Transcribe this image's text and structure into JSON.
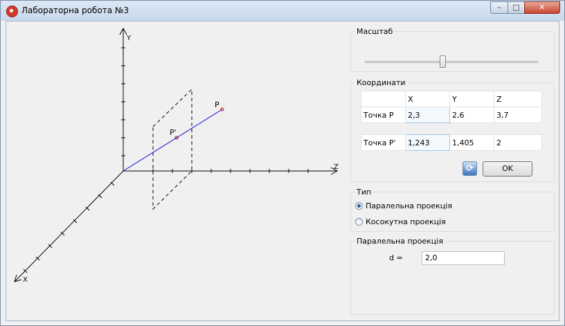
{
  "window": {
    "title": "Лабораторна робота №3",
    "buttons": {
      "minimize": "–",
      "maximize": "□",
      "close": "✕"
    }
  },
  "plot": {
    "axis_labels": {
      "y": "Y",
      "z": "Z",
      "x": "X"
    },
    "point_labels": {
      "p": "P",
      "p_prime": "P'"
    }
  },
  "scale": {
    "title": "Масштаб",
    "slider_value_fraction": 0.45
  },
  "coordinates": {
    "title": "Координати",
    "headers": [
      "",
      "X",
      "Y",
      "Z"
    ],
    "point_p": {
      "label": "Точка P",
      "x": "2,3",
      "y": "2,6",
      "z": "3,7"
    },
    "point_p_prime": {
      "label": "Точка P'",
      "x": "1,243",
      "y": "1,405",
      "z": "2"
    },
    "refresh_icon": "refresh-icon",
    "ok_label": "OK"
  },
  "type_group": {
    "title": "Тип",
    "options": [
      {
        "label": "Паралельна проекція",
        "checked": true
      },
      {
        "label": "Косокутна проекція",
        "checked": false
      }
    ]
  },
  "parallel": {
    "title": "Паралельна проекція",
    "d_label": "d =",
    "d_value": "2,0"
  },
  "colors": {
    "segment": "#0000cc",
    "point": "#cc0000",
    "axes": "#000000"
  }
}
